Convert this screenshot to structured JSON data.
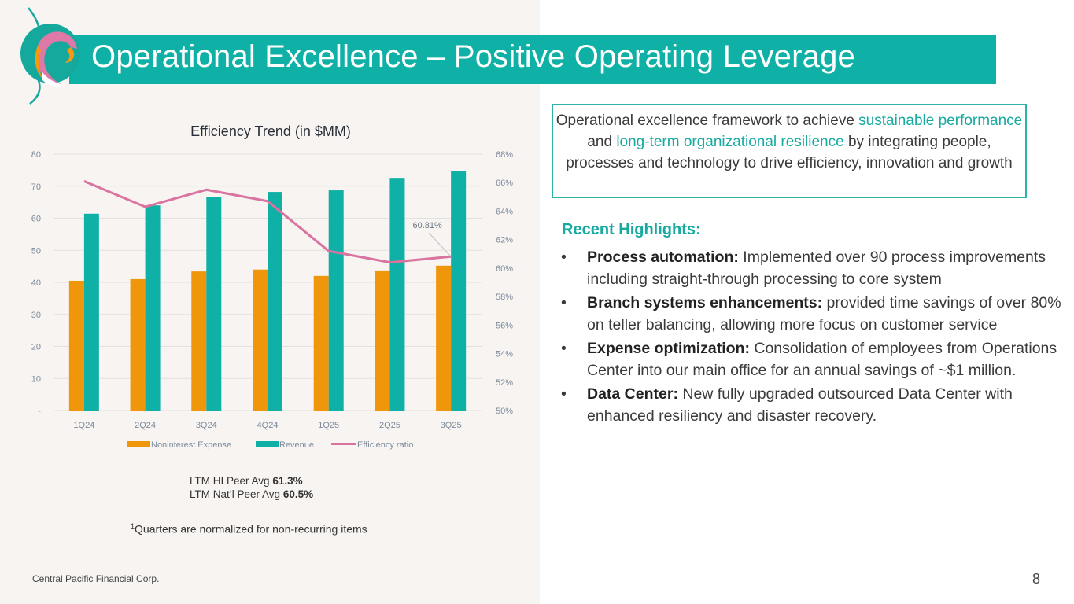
{
  "slide": {
    "title": "Operational Excellence – Positive Operating Leverage",
    "footer": "Central Pacific Financial Corp.",
    "page_number": "8",
    "colors": {
      "teal": "#0fb1a6",
      "orange": "#f0960a",
      "pink": "#d9739f",
      "left_panel_bg": "#f7f4f1"
    }
  },
  "logo": {
    "icon": "cpb-swirl-logo-icon"
  },
  "chart_data": {
    "type": "bar",
    "title": "Efficiency Trend (in $MM)",
    "categories": [
      "1Q24",
      "2Q24",
      "3Q24",
      "4Q24",
      "1Q25",
      "2Q25",
      "3Q25"
    ],
    "series": [
      {
        "name": "Noninterest Expense",
        "type": "bar",
        "axis": "left",
        "color": "#f0960a",
        "values": [
          40.5,
          41.0,
          43.4,
          44.0,
          42.0,
          43.7,
          45.2
        ]
      },
      {
        "name": "Revenue",
        "type": "bar",
        "axis": "left",
        "color": "#0fb1a6",
        "values": [
          61.4,
          64.0,
          66.5,
          68.2,
          68.7,
          72.6,
          74.6
        ]
      },
      {
        "name": "Efficiency ratio",
        "type": "line",
        "axis": "right",
        "color": "#d9739f",
        "values": [
          66.1,
          64.3,
          65.5,
          64.7,
          61.2,
          60.4,
          60.81
        ]
      }
    ],
    "left_axis": {
      "ylim": [
        0,
        80
      ],
      "ticks": [
        0,
        10,
        20,
        30,
        40,
        50,
        60,
        70,
        80
      ],
      "tick_labels": [
        "-",
        "10",
        "20",
        "30",
        "40",
        "50",
        "60",
        "70",
        "80"
      ]
    },
    "right_axis": {
      "ylim": [
        50,
        68
      ],
      "ticks": [
        50,
        52,
        54,
        56,
        58,
        60,
        62,
        64,
        66,
        68
      ],
      "tick_labels": [
        "50%",
        "52%",
        "54%",
        "56%",
        "58%",
        "60%",
        "62%",
        "64%",
        "66%",
        "68%"
      ]
    },
    "annotation": {
      "category": "3Q25",
      "series": "Efficiency ratio",
      "text": "60.81%"
    },
    "grid": true,
    "legend_position": "bottom",
    "xlabel": "",
    "ylabel": ""
  },
  "peer": {
    "hi_label": "LTM HI Peer Avg",
    "hi_value": "61.3%",
    "natl_label": "LTM Nat’l Peer Avg",
    "natl_value": "60.5%"
  },
  "footnote": {
    "marker": "1",
    "text": "Quarters are normalized for non-recurring items"
  },
  "framework": {
    "part1": "Operational excellence framework to achieve ",
    "highlight1": "sustainable performance",
    "part2": " and ",
    "highlight2": "long-term organizational resilience",
    "part3": " by integrating people, processes and technology to drive efficiency, innovation and growth"
  },
  "highlights": {
    "title": "Recent Highlights:",
    "bullet": "•",
    "items": [
      {
        "label": "Process automation:",
        "text": " Implemented over 90 process improvements including straight-through processing to core system"
      },
      {
        "label": "Branch systems enhancements:",
        "text": " provided time savings of over 80% on teller balancing, allowing more focus on customer service"
      },
      {
        "label": "Expense optimization:",
        "text": " Consolidation of employees from Operations Center into our main office for an annual savings of ~$1 million."
      },
      {
        "label": "Data Center:",
        "text": " New fully upgraded outsourced Data Center with enhanced resiliency and disaster recovery."
      }
    ]
  }
}
